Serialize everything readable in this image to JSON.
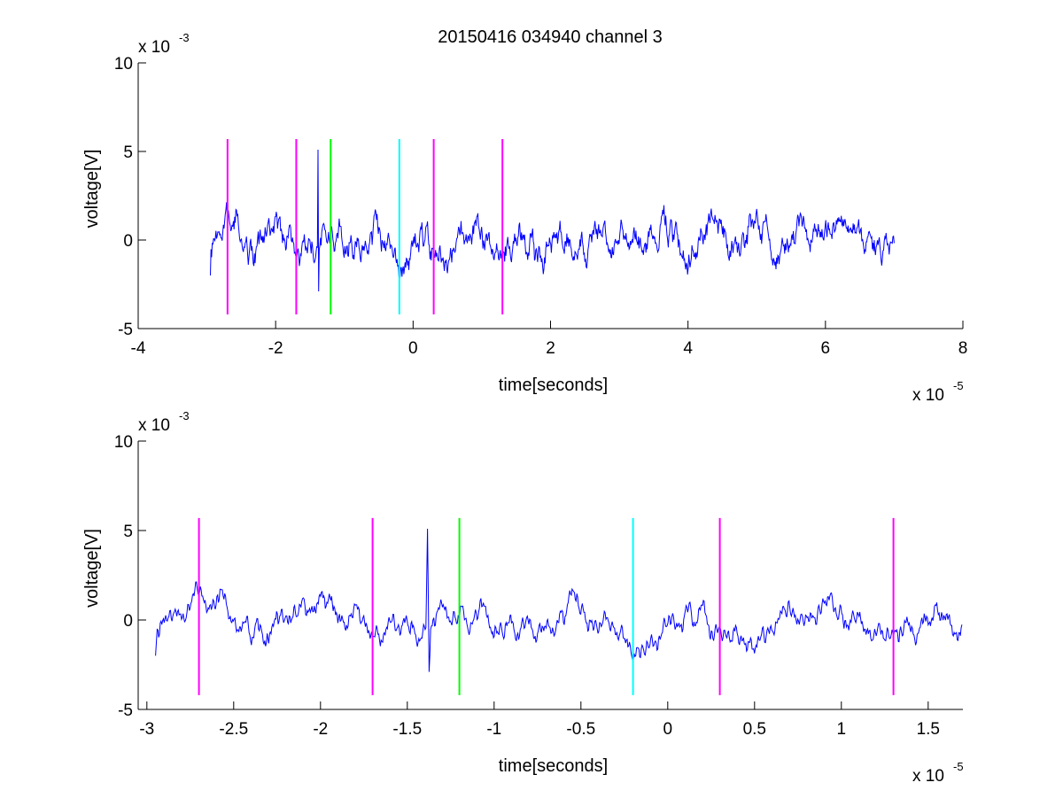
{
  "title": "20150416 034940 channel 3",
  "colors": {
    "signal": "#0000ff",
    "marker_magenta": "#ff00ff",
    "marker_green": "#00ff00",
    "marker_cyan": "#00ffff",
    "axes": "#000000",
    "background": "#ffffff"
  },
  "chart_data": [
    {
      "type": "line",
      "title": "20150416 034940 channel 3",
      "xlabel": "time[seconds]",
      "ylabel": "voltage[V]",
      "x_multiplier_text": "x 10",
      "x_multiplier_exp": "-5",
      "y_multiplier_text": "x 10",
      "y_multiplier_exp": "-3",
      "xlim": [
        -4,
        8
      ],
      "ylim": [
        -5,
        10
      ],
      "xticks": [
        -4,
        -2,
        0,
        2,
        4,
        6,
        8
      ],
      "xtick_labels": [
        "-4",
        "-2",
        "0",
        "2",
        "4",
        "6",
        "8"
      ],
      "yticks": [
        -5,
        0,
        5,
        10
      ],
      "ytick_labels": [
        "-5",
        "0",
        "5",
        "10"
      ],
      "grid": false,
      "series": [
        {
          "color": "#0000ff",
          "x_range": [
            -2.95,
            7.0
          ],
          "y_range_approx": [
            -3.7,
            5.2
          ],
          "seed": 7
        }
      ],
      "markers": [
        {
          "x": -2.7,
          "color": "#ff00ff",
          "y_range": [
            -4.2,
            5.7
          ]
        },
        {
          "x": -1.7,
          "color": "#ff00ff",
          "y_range": [
            -4.2,
            5.7
          ]
        },
        {
          "x": -1.2,
          "color": "#00ff00",
          "y_range": [
            -4.2,
            5.7
          ]
        },
        {
          "x": -0.2,
          "color": "#00ffff",
          "y_range": [
            -4.2,
            5.7
          ]
        },
        {
          "x": 0.3,
          "color": "#ff00ff",
          "y_range": [
            -4.2,
            5.7
          ]
        },
        {
          "x": 1.3,
          "color": "#ff00ff",
          "y_range": [
            -4.2,
            5.7
          ]
        }
      ]
    },
    {
      "type": "line",
      "title": "",
      "xlabel": "time[seconds]",
      "ylabel": "voltage[V]",
      "x_multiplier_text": "x 10",
      "x_multiplier_exp": "-5",
      "y_multiplier_text": "x 10",
      "y_multiplier_exp": "-3",
      "xlim": [
        -3.05,
        1.7
      ],
      "ylim": [
        -5,
        10
      ],
      "xticks": [
        -3,
        -2.5,
        -2,
        -1.5,
        -1,
        -0.5,
        0,
        0.5,
        1,
        1.5
      ],
      "xtick_labels": [
        "-3",
        "-2.5",
        "-2",
        "-1.5",
        "-1",
        "-0.5",
        "0",
        "0.5",
        "1",
        "1.5"
      ],
      "yticks": [
        -5,
        0,
        5,
        10
      ],
      "ytick_labels": [
        "-5",
        "0",
        "5",
        "10"
      ],
      "grid": false,
      "series": [
        {
          "color": "#0000ff",
          "x_range": [
            -2.95,
            1.7
          ],
          "y_range_approx": [
            -3.7,
            5.1
          ],
          "seed": 7
        }
      ],
      "markers": [
        {
          "x": -2.7,
          "color": "#ff00ff",
          "y_range": [
            -4.2,
            5.7
          ]
        },
        {
          "x": -1.7,
          "color": "#ff00ff",
          "y_range": [
            -4.2,
            5.7
          ]
        },
        {
          "x": -1.2,
          "color": "#00ff00",
          "y_range": [
            -4.2,
            5.7
          ]
        },
        {
          "x": -0.2,
          "color": "#00ffff",
          "y_range": [
            -4.2,
            5.7
          ]
        },
        {
          "x": 0.3,
          "color": "#ff00ff",
          "y_range": [
            -4.2,
            5.7
          ]
        },
        {
          "x": 1.3,
          "color": "#ff00ff",
          "y_range": [
            -4.2,
            5.7
          ]
        }
      ]
    }
  ]
}
